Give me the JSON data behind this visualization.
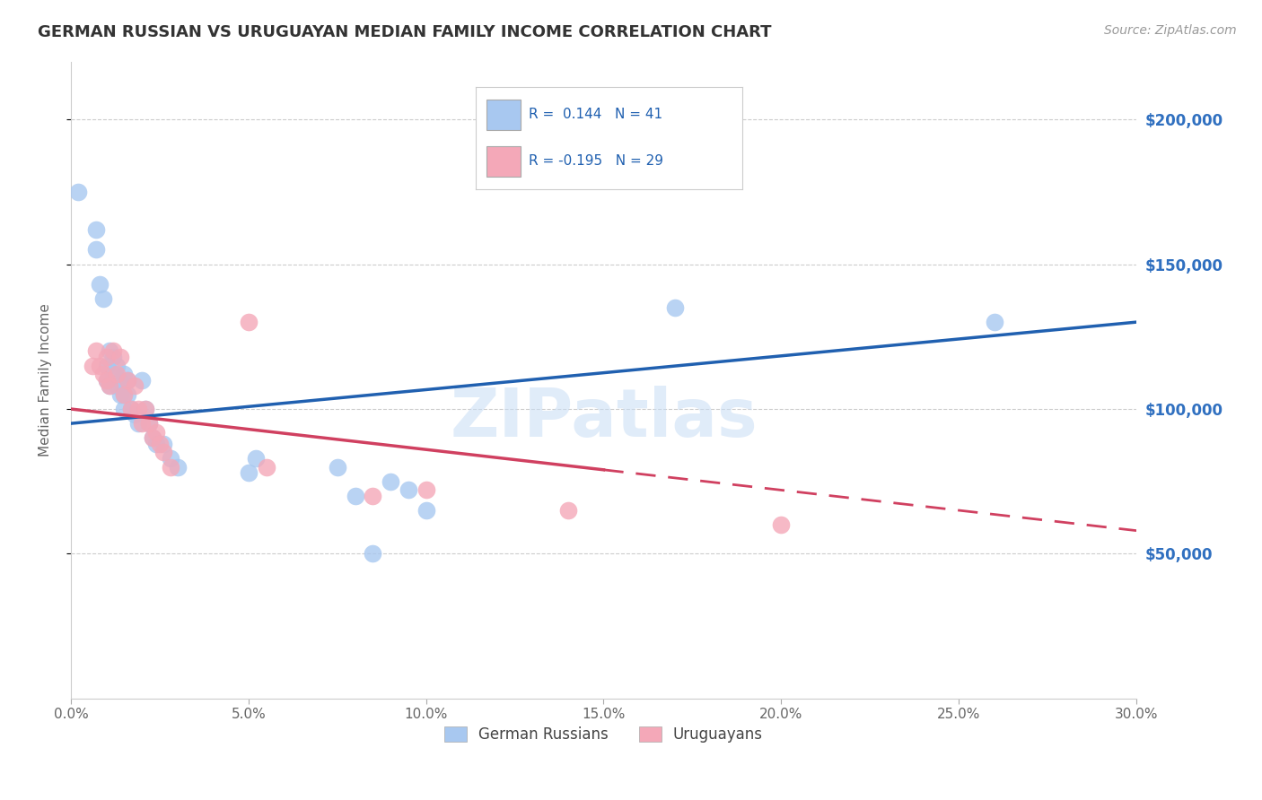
{
  "title": "GERMAN RUSSIAN VS URUGUAYAN MEDIAN FAMILY INCOME CORRELATION CHART",
  "source": "Source: ZipAtlas.com",
  "ylabel": "Median Family Income",
  "xlabel_ticks": [
    "0.0%",
    "5.0%",
    "10.0%",
    "15.0%",
    "20.0%",
    "25.0%",
    "30.0%"
  ],
  "ytick_labels": [
    "$50,000",
    "$100,000",
    "$150,000",
    "$200,000"
  ],
  "ytick_values": [
    50000,
    100000,
    150000,
    200000
  ],
  "xlim": [
    0.0,
    0.3
  ],
  "ylim": [
    0,
    220000
  ],
  "legend_label1": "German Russians",
  "legend_label2": "Uruguayans",
  "R1": 0.144,
  "N1": 41,
  "R2": -0.195,
  "N2": 29,
  "blue_color": "#A8C8F0",
  "pink_color": "#F4A8B8",
  "blue_line_color": "#2060B0",
  "pink_line_color": "#D04060",
  "watermark": "ZIPatlas",
  "german_russian_x": [
    0.002,
    0.007,
    0.007,
    0.008,
    0.009,
    0.01,
    0.01,
    0.011,
    0.011,
    0.012,
    0.012,
    0.013,
    0.013,
    0.014,
    0.014,
    0.015,
    0.015,
    0.015,
    0.016,
    0.016,
    0.017,
    0.018,
    0.019,
    0.02,
    0.021,
    0.022,
    0.023,
    0.024,
    0.026,
    0.028,
    0.03,
    0.05,
    0.052,
    0.075,
    0.08,
    0.085,
    0.09,
    0.095,
    0.1,
    0.26,
    0.17
  ],
  "german_russian_y": [
    175000,
    162000,
    155000,
    143000,
    138000,
    115000,
    110000,
    120000,
    108000,
    118000,
    112000,
    108000,
    115000,
    110000,
    105000,
    112000,
    105000,
    100000,
    110000,
    105000,
    100000,
    98000,
    95000,
    110000,
    100000,
    95000,
    90000,
    88000,
    88000,
    83000,
    80000,
    78000,
    83000,
    80000,
    70000,
    50000,
    75000,
    72000,
    65000,
    130000,
    135000
  ],
  "uruguayan_x": [
    0.006,
    0.007,
    0.008,
    0.009,
    0.01,
    0.01,
    0.011,
    0.012,
    0.013,
    0.014,
    0.015,
    0.016,
    0.017,
    0.018,
    0.019,
    0.02,
    0.021,
    0.022,
    0.023,
    0.024,
    0.025,
    0.026,
    0.028,
    0.05,
    0.055,
    0.085,
    0.1,
    0.14,
    0.2
  ],
  "uruguayan_y": [
    115000,
    120000,
    115000,
    112000,
    110000,
    118000,
    108000,
    120000,
    112000,
    118000,
    105000,
    110000,
    100000,
    108000,
    100000,
    95000,
    100000,
    95000,
    90000,
    92000,
    88000,
    85000,
    80000,
    130000,
    80000,
    70000,
    72000,
    65000,
    60000
  ]
}
